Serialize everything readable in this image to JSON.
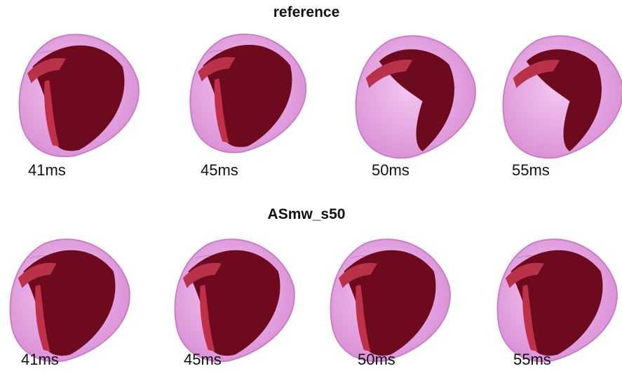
{
  "panels": [
    {
      "title": "reference",
      "frames": [
        "41ms",
        "45ms",
        "50ms",
        "55ms"
      ]
    },
    {
      "title": "ASmw_s50",
      "frames": [
        "41ms",
        "45ms",
        "50ms",
        "55ms"
      ]
    }
  ]
}
